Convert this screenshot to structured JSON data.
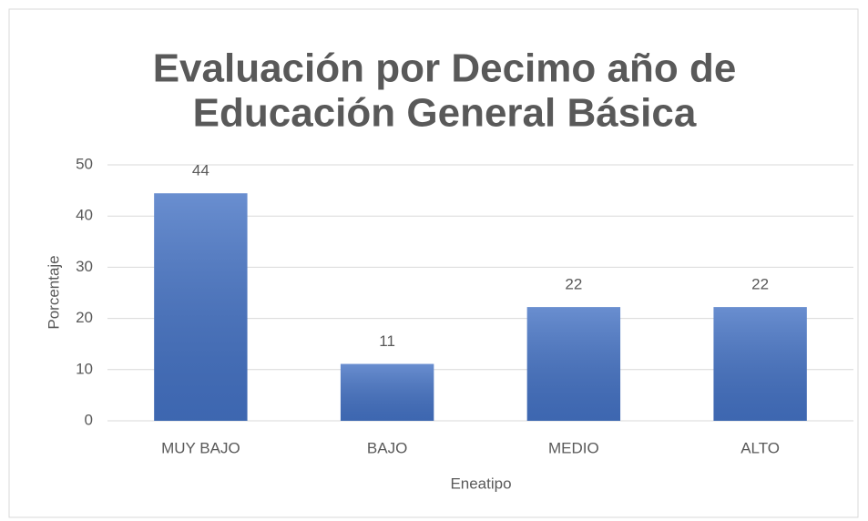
{
  "chart_data": {
    "type": "bar",
    "title": [
      "Evaluación por Decimo año de",
      "Educación General Básica"
    ],
    "x_label": "Eneatipo",
    "y_label": "Porcentaje",
    "categories": [
      "MUY BAJO",
      "BAJO",
      "MEDIO",
      "ALTO"
    ],
    "values": [
      44.44,
      11.11,
      22.22,
      22.22
    ],
    "value_labels": [
      "44",
      "11",
      "22",
      "22"
    ],
    "color": "#4472c4",
    "ylim": [
      0,
      50
    ],
    "yticks": [
      0,
      10,
      20,
      30,
      40,
      50
    ],
    "grid": true
  }
}
